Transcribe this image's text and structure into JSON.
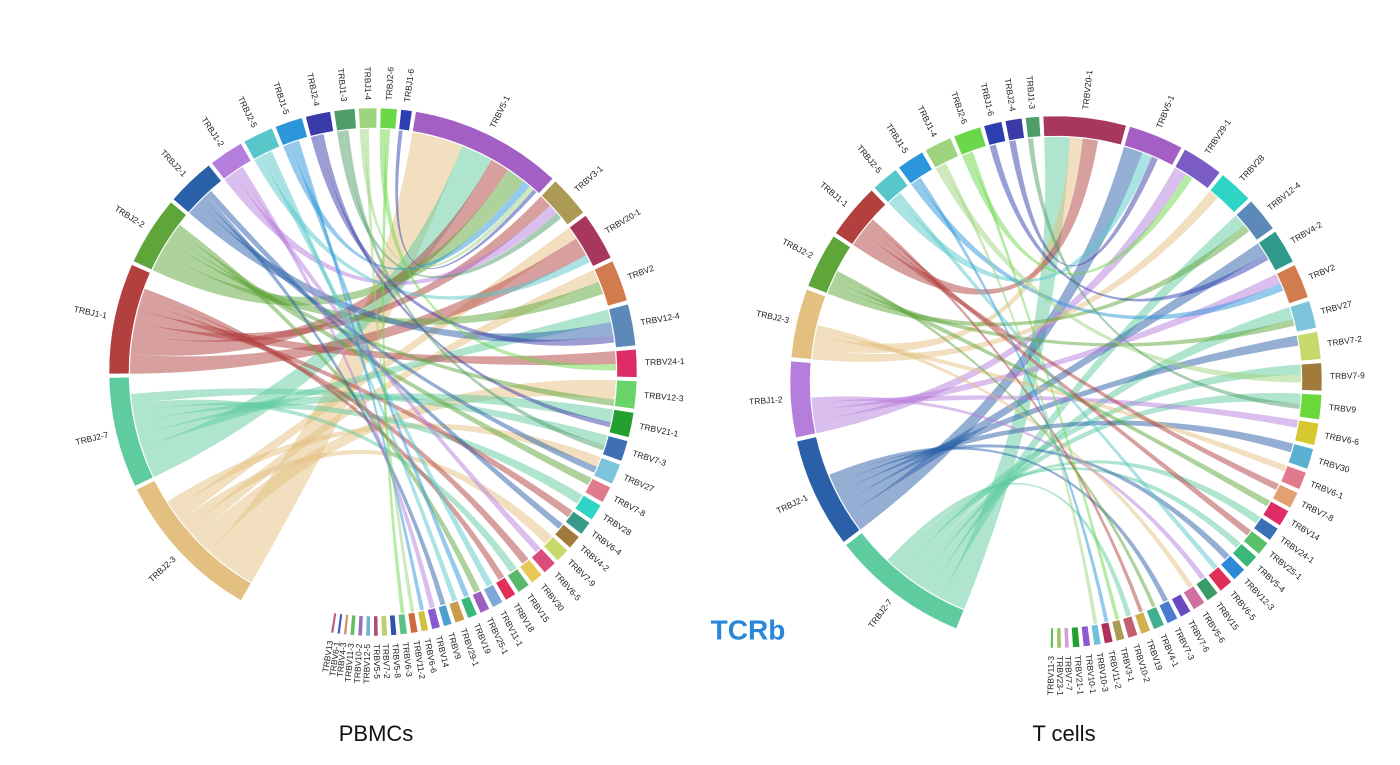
{
  "annotation": "TCRb",
  "chart_data": [
    {
      "type": "chord",
      "title": "PBMCs",
      "sectors": [
        {
          "name": "TRBJ2-3",
          "color": "#e3c07f",
          "value": 11
        },
        {
          "name": "TRBJ2-7",
          "color": "#5fcca0",
          "value": 8
        },
        {
          "name": "TRBJ1-1",
          "color": "#b2403f",
          "value": 8
        },
        {
          "name": "TRBJ2-2",
          "color": "#5ea63a",
          "value": 5
        },
        {
          "name": "TRBJ2-1",
          "color": "#2960a8",
          "value": 3.5
        },
        {
          "name": "TRBJ1-2",
          "color": "#b57ddc",
          "value": 2.5
        },
        {
          "name": "TRBJ2-5",
          "color": "#58c7c9",
          "value": 2.2
        },
        {
          "name": "TRBJ1-5",
          "color": "#2c96da",
          "value": 2
        },
        {
          "name": "TRBJ2-4",
          "color": "#3a3ba8",
          "value": 1.8
        },
        {
          "name": "TRBJ1-3",
          "color": "#4f9e6a",
          "value": 1.5
        },
        {
          "name": "TRBJ1-4",
          "color": "#9fd47e",
          "value": 1.3
        },
        {
          "name": "TRBJ2-6",
          "color": "#6bd84a",
          "value": 1.2
        },
        {
          "name": "TRBJ1-6",
          "color": "#2d3fb0",
          "value": 0.8
        },
        {
          "name": "TRBV5-1",
          "color": "#a35fc4",
          "value": 11
        },
        {
          "name": "TRBV3-1",
          "color": "#ad9a55",
          "value": 3
        },
        {
          "name": "TRBV20-1",
          "color": "#a8375e",
          "value": 3.5
        },
        {
          "name": "TRBV2",
          "color": "#d27b4f",
          "value": 3
        },
        {
          "name": "TRBV12-4",
          "color": "#5c89b8",
          "value": 3
        },
        {
          "name": "TRBV24-1",
          "color": "#dd2c66",
          "value": 2
        },
        {
          "name": "TRBV12-3",
          "color": "#6ad36a",
          "value": 2
        },
        {
          "name": "TRBV21-1",
          "color": "#23a030",
          "value": 1.8
        },
        {
          "name": "TRBV7-3",
          "color": "#3f6fb5",
          "value": 1.5
        },
        {
          "name": "TRBV27",
          "color": "#7cc4dc",
          "value": 1.5
        },
        {
          "name": "TRBV7-8",
          "color": "#e07a8c",
          "value": 1.2
        },
        {
          "name": "TRBV28",
          "color": "#2ed4c4",
          "value": 1.2
        },
        {
          "name": "TRBV6-4",
          "color": "#3a9a8a",
          "value": 1
        },
        {
          "name": "TRBV4-2",
          "color": "#a07a3a",
          "value": 1
        },
        {
          "name": "TRBV7-9",
          "color": "#c7d96b",
          "value": 1
        },
        {
          "name": "TRBV6-5",
          "color": "#d94d7a",
          "value": 1
        },
        {
          "name": "TRBV30",
          "color": "#e8c85a",
          "value": 0.9
        },
        {
          "name": "TRBV15",
          "color": "#59b86b",
          "value": 0.9
        },
        {
          "name": "TRBV18",
          "color": "#e0305a",
          "value": 0.8
        },
        {
          "name": "TRBV11-1",
          "color": "#7fa8d8",
          "value": 0.8
        },
        {
          "name": "TRBV25-1",
          "color": "#9a5fc0",
          "value": 0.7
        },
        {
          "name": "TRBV19",
          "color": "#3ab87a",
          "value": 0.7
        },
        {
          "name": "TRBV29-1",
          "color": "#c99b4b",
          "value": 0.7
        },
        {
          "name": "TRBV9",
          "color": "#4aa0d0",
          "value": 0.6
        },
        {
          "name": "TRBV14",
          "color": "#8a5ad0",
          "value": 0.6
        },
        {
          "name": "TRBV6-6",
          "color": "#d0c040",
          "value": 0.5
        },
        {
          "name": "TRBV11-2",
          "color": "#d06a3a",
          "value": 0.5
        },
        {
          "name": "TRBV6-3",
          "color": "#5ac08a",
          "value": 0.5
        },
        {
          "name": "TRBV5-8",
          "color": "#3050b0",
          "value": 0.4
        },
        {
          "name": "TRBV7-2",
          "color": "#c0d070",
          "value": 0.4
        },
        {
          "name": "TRBV5-5",
          "color": "#b04a70",
          "value": 0.3
        },
        {
          "name": "TRBV12-5",
          "color": "#70b0d0",
          "value": 0.3
        },
        {
          "name": "TRBV10-2",
          "color": "#9070c0",
          "value": 0.3
        },
        {
          "name": "TRBV11-3",
          "color": "#60c060",
          "value": 0.3
        },
        {
          "name": "TRBV4-3",
          "color": "#d09060",
          "value": 0.2
        },
        {
          "name": "TRBV6-1",
          "color": "#4060c0",
          "value": 0.2
        },
        {
          "name": "TRBV13",
          "color": "#c06080",
          "value": 0.2
        }
      ],
      "links": [
        {
          "source": "TRBJ2-3",
          "target": "TRBV5-1",
          "value": 4
        },
        {
          "source": "TRBJ2-3",
          "target": "TRBV12-3",
          "value": 1.5
        },
        {
          "source": "TRBJ2-3",
          "target": "TRBV2",
          "value": 1
        },
        {
          "source": "TRBJ2-3",
          "target": "TRBV7-9",
          "value": 0.8
        },
        {
          "source": "TRBJ2-3",
          "target": "TRBV20-1",
          "value": 1
        },
        {
          "source": "TRBJ2-3",
          "target": "TRBV27",
          "value": 0.8
        },
        {
          "source": "TRBJ2-7",
          "target": "TRBV5-1",
          "value": 2.5
        },
        {
          "source": "TRBJ2-7",
          "target": "TRBV12-4",
          "value": 1
        },
        {
          "source": "TRBJ2-7",
          "target": "TRBV21-1",
          "value": 1
        },
        {
          "source": "TRBJ2-7",
          "target": "TRBV28",
          "value": 0.8
        },
        {
          "source": "TRBJ2-7",
          "target": "TRBV15",
          "value": 0.6
        },
        {
          "source": "TRBJ2-7",
          "target": "TRBV7-3",
          "value": 0.8
        },
        {
          "source": "TRBJ1-1",
          "target": "TRBV20-1",
          "value": 1.5
        },
        {
          "source": "TRBJ1-1",
          "target": "TRBV5-1",
          "value": 1.5
        },
        {
          "source": "TRBJ1-1",
          "target": "TRBV3-1",
          "value": 1
        },
        {
          "source": "TRBJ1-1",
          "target": "TRBV24-1",
          "value": 1
        },
        {
          "source": "TRBJ1-1",
          "target": "TRBV6-4",
          "value": 0.6
        },
        {
          "source": "TRBJ1-1",
          "target": "TRBV30",
          "value": 0.6
        },
        {
          "source": "TRBJ1-1",
          "target": "TRBV18",
          "value": 0.5
        },
        {
          "source": "TRBJ2-2",
          "target": "TRBV5-1",
          "value": 1.5
        },
        {
          "source": "TRBJ2-2",
          "target": "TRBV2",
          "value": 1
        },
        {
          "source": "TRBJ2-2",
          "target": "TRBV12-3",
          "value": 0.5
        },
        {
          "source": "TRBJ2-2",
          "target": "TRBV7-8",
          "value": 0.6
        },
        {
          "source": "TRBJ2-2",
          "target": "TRBV25-1",
          "value": 0.5
        },
        {
          "source": "TRBJ2-1",
          "target": "TRBV12-4",
          "value": 1
        },
        {
          "source": "TRBJ2-1",
          "target": "TRBV27",
          "value": 0.5
        },
        {
          "source": "TRBJ2-1",
          "target": "TRBV9",
          "value": 0.4
        },
        {
          "source": "TRBJ2-1",
          "target": "TRBV4-2",
          "value": 0.5
        },
        {
          "source": "TRBJ1-2",
          "target": "TRBV3-1",
          "value": 0.8
        },
        {
          "source": "TRBJ1-2",
          "target": "TRBV6-5",
          "value": 0.5
        },
        {
          "source": "TRBJ1-2",
          "target": "TRBV14",
          "value": 0.4
        },
        {
          "source": "TRBJ2-5",
          "target": "TRBV20-1",
          "value": 0.6
        },
        {
          "source": "TRBJ2-5",
          "target": "TRBV11-1",
          "value": 0.5
        },
        {
          "source": "TRBJ2-5",
          "target": "TRBV29-1",
          "value": 0.4
        },
        {
          "source": "TRBJ1-5",
          "target": "TRBV5-1",
          "value": 0.6
        },
        {
          "source": "TRBJ1-5",
          "target": "TRBV19",
          "value": 0.4
        },
        {
          "source": "TRBJ1-5",
          "target": "TRBV6-6",
          "value": 0.3
        },
        {
          "source": "TRBJ2-4",
          "target": "TRBV12-4",
          "value": 0.6
        },
        {
          "source": "TRBJ2-4",
          "target": "TRBV21-1",
          "value": 0.4
        },
        {
          "source": "TRBJ1-3",
          "target": "TRBV3-1",
          "value": 0.5
        },
        {
          "source": "TRBJ1-3",
          "target": "TRBV7-3",
          "value": 0.4
        },
        {
          "source": "TRBJ1-4",
          "target": "TRBV5-1",
          "value": 0.4
        },
        {
          "source": "TRBJ1-4",
          "target": "TRBV11-2",
          "value": 0.3
        },
        {
          "source": "TRBJ2-6",
          "target": "TRBV24-1",
          "value": 0.5
        },
        {
          "source": "TRBJ2-6",
          "target": "TRBV6-3",
          "value": 0.3
        },
        {
          "source": "TRBJ1-6",
          "target": "TRBV5-1",
          "value": 0.3
        }
      ]
    },
    {
      "type": "chord",
      "title": "T cells",
      "sectors": [
        {
          "name": "TRBJ2-7",
          "color": "#5fcca0",
          "value": 10
        },
        {
          "name": "TRBJ2-1",
          "color": "#2960a8",
          "value": 8
        },
        {
          "name": "TRBJ1-2",
          "color": "#b57ddc",
          "value": 5.5
        },
        {
          "name": "TRBJ2-3",
          "color": "#e3c07f",
          "value": 5
        },
        {
          "name": "TRBJ2-2",
          "color": "#5ea63a",
          "value": 4
        },
        {
          "name": "TRBJ1-1",
          "color": "#b2403f",
          "value": 4
        },
        {
          "name": "TRBJ2-5",
          "color": "#58c7c9",
          "value": 2
        },
        {
          "name": "TRBJ1-5",
          "color": "#2c96da",
          "value": 2
        },
        {
          "name": "TRBJ1-4",
          "color": "#9fd47e",
          "value": 2
        },
        {
          "name": "TRBJ2-6",
          "color": "#6bd84a",
          "value": 2
        },
        {
          "name": "TRBJ1-6",
          "color": "#2d3fb0",
          "value": 1.3
        },
        {
          "name": "TRBJ2-4",
          "color": "#3a3ba8",
          "value": 1.2
        },
        {
          "name": "TRBJ1-3",
          "color": "#4f9e6a",
          "value": 1
        },
        {
          "name": "TRBV20-1",
          "color": "#a8375e",
          "value": 6
        },
        {
          "name": "TRBV5-1",
          "color": "#a35fc4",
          "value": 4
        },
        {
          "name": "TRBV29-1",
          "color": "#7b5cc4",
          "value": 3
        },
        {
          "name": "TRBV28",
          "color": "#2ed4c4",
          "value": 2.5
        },
        {
          "name": "TRBV12-4",
          "color": "#5c89b8",
          "value": 2.5
        },
        {
          "name": "TRBV4-2",
          "color": "#2f9a8a",
          "value": 2.5
        },
        {
          "name": "TRBV2",
          "color": "#d27b4f",
          "value": 2.5
        },
        {
          "name": "TRBV27",
          "color": "#7cc4dc",
          "value": 2
        },
        {
          "name": "TRBV7-2",
          "color": "#c7d96b",
          "value": 2
        },
        {
          "name": "TRBV7-9",
          "color": "#a07a3a",
          "value": 2
        },
        {
          "name": "TRBV9",
          "color": "#6ad83a",
          "value": 1.8
        },
        {
          "name": "TRBV6-6",
          "color": "#d8c830",
          "value": 1.6
        },
        {
          "name": "TRBV30",
          "color": "#5ab0d0",
          "value": 1.5
        },
        {
          "name": "TRBV6-1",
          "color": "#e07a8c",
          "value": 1.3
        },
        {
          "name": "TRBV7-8",
          "color": "#e0a070",
          "value": 1.2
        },
        {
          "name": "TRBV14",
          "color": "#dd2c66",
          "value": 1.2
        },
        {
          "name": "TRBV24-1",
          "color": "#3a6fb5",
          "value": 1
        },
        {
          "name": "TRBV25-1",
          "color": "#5ac06a",
          "value": 1
        },
        {
          "name": "TRBV5-4",
          "color": "#3ab87a",
          "value": 1
        },
        {
          "name": "TRBV12-3",
          "color": "#2c8ad8",
          "value": 1
        },
        {
          "name": "TRBV6-5",
          "color": "#e0305a",
          "value": 1
        },
        {
          "name": "TRBV15",
          "color": "#3a9a6a",
          "value": 0.9
        },
        {
          "name": "TRBV5-6",
          "color": "#d070a0",
          "value": 0.9
        },
        {
          "name": "TRBV7-6",
          "color": "#6a4ac0",
          "value": 0.8
        },
        {
          "name": "TRBV7-3",
          "color": "#4a7ad0",
          "value": 0.8
        },
        {
          "name": "TRBV4-1",
          "color": "#40b090",
          "value": 0.8
        },
        {
          "name": "TRBV19",
          "color": "#d0b050",
          "value": 0.7
        },
        {
          "name": "TRBV10-2",
          "color": "#c06070",
          "value": 0.7
        },
        {
          "name": "TRBV3-1",
          "color": "#ad9a55",
          "value": 0.6
        },
        {
          "name": "TRBV11-2",
          "color": "#b0305a",
          "value": 0.6
        },
        {
          "name": "TRBV10-3",
          "color": "#70c0e0",
          "value": 0.5
        },
        {
          "name": "TRBV10-1",
          "color": "#8a5ad0",
          "value": 0.5
        },
        {
          "name": "TRBV21-1",
          "color": "#23a030",
          "value": 0.5
        },
        {
          "name": "TRBV7-7",
          "color": "#d0a0d0",
          "value": 0.3
        },
        {
          "name": "TRBV23-1",
          "color": "#a0c060",
          "value": 0.3
        },
        {
          "name": "TRBV11-3",
          "color": "#60c060",
          "value": 0.2
        }
      ],
      "links": [
        {
          "source": "TRBJ2-7",
          "target": "TRBV20-1",
          "value": 2
        },
        {
          "source": "TRBJ2-7",
          "target": "TRBV12-4",
          "value": 1
        },
        {
          "source": "TRBJ2-7",
          "target": "TRBV27",
          "value": 1
        },
        {
          "source": "TRBJ2-7",
          "target": "TRBV9",
          "value": 0.8
        },
        {
          "source": "TRBJ2-7",
          "target": "TRBV7-9",
          "value": 0.8
        },
        {
          "source": "TRBJ2-7",
          "target": "TRBV24-1",
          "value": 0.6
        },
        {
          "source": "TRBJ2-7",
          "target": "TRBV5-4",
          "value": 0.5
        },
        {
          "source": "TRBJ2-7",
          "target": "TRBV10-2",
          "value": 0.4
        },
        {
          "source": "TRBJ2-1",
          "target": "TRBV5-1",
          "value": 1.5
        },
        {
          "source": "TRBJ2-1",
          "target": "TRBV4-2",
          "value": 1
        },
        {
          "source": "TRBJ2-1",
          "target": "TRBV7-2",
          "value": 0.8
        },
        {
          "source": "TRBJ2-1",
          "target": "TRBV30",
          "value": 0.7
        },
        {
          "source": "TRBJ2-1",
          "target": "TRBV12-3",
          "value": 0.5
        },
        {
          "source": "TRBJ2-1",
          "target": "TRBV7-3",
          "value": 0.4
        },
        {
          "source": "TRBJ1-2",
          "target": "TRBV29-1",
          "value": 1
        },
        {
          "source": "TRBJ1-2",
          "target": "TRBV2",
          "value": 0.8
        },
        {
          "source": "TRBJ1-2",
          "target": "TRBV6-6",
          "value": 0.6
        },
        {
          "source": "TRBJ1-2",
          "target": "TRBV15",
          "value": 0.4
        },
        {
          "source": "TRBJ2-3",
          "target": "TRBV28",
          "value": 0.8
        },
        {
          "source": "TRBJ2-3",
          "target": "TRBV20-1",
          "value": 1
        },
        {
          "source": "TRBJ2-3",
          "target": "TRBV6-1",
          "value": 0.5
        },
        {
          "source": "TRBJ2-3",
          "target": "TRBV5-6",
          "value": 0.4
        },
        {
          "source": "TRBJ2-2",
          "target": "TRBV12-4",
          "value": 0.6
        },
        {
          "source": "TRBJ2-2",
          "target": "TRBV27",
          "value": 0.5
        },
        {
          "source": "TRBJ2-2",
          "target": "TRBV14",
          "value": 0.5
        },
        {
          "source": "TRBJ2-2",
          "target": "TRBV4-1",
          "value": 0.3
        },
        {
          "source": "TRBJ1-1",
          "target": "TRBV20-1",
          "value": 1.2
        },
        {
          "source": "TRBJ1-1",
          "target": "TRBV7-8",
          "value": 0.5
        },
        {
          "source": "TRBJ1-1",
          "target": "TRBV25-1",
          "value": 0.5
        },
        {
          "source": "TRBJ1-1",
          "target": "TRBV19",
          "value": 0.3
        },
        {
          "source": "TRBJ2-5",
          "target": "TRBV5-1",
          "value": 0.8
        },
        {
          "source": "TRBJ2-5",
          "target": "TRBV6-5",
          "value": 0.4
        },
        {
          "source": "TRBJ1-5",
          "target": "TRBV2",
          "value": 0.6
        },
        {
          "source": "TRBJ1-5",
          "target": "TRBV11-2",
          "value": 0.3
        },
        {
          "source": "TRBJ1-4",
          "target": "TRBV7-9",
          "value": 0.6
        },
        {
          "source": "TRBJ1-4",
          "target": "TRBV10-3",
          "value": 0.3
        },
        {
          "source": "TRBJ2-6",
          "target": "TRBV29-1",
          "value": 0.6
        },
        {
          "source": "TRBJ2-6",
          "target": "TRBV3-1",
          "value": 0.3
        },
        {
          "source": "TRBJ1-6",
          "target": "TRBV4-2",
          "value": 0.5
        },
        {
          "source": "TRBJ2-4",
          "target": "TRBV5-1",
          "value": 0.5
        },
        {
          "source": "TRBJ1-3",
          "target": "TRBV9",
          "value": 0.4
        }
      ]
    }
  ]
}
